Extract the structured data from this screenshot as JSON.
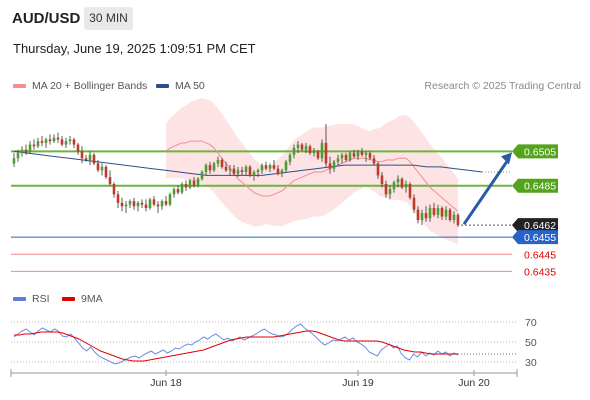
{
  "header": {
    "symbol": "AUD/USD",
    "timeframe": "30 MIN"
  },
  "datetime": "Thursday, June 19, 2025 1:09:51 PM CET",
  "legend": {
    "ma20": {
      "label": "MA 20 + Bollinger Bands",
      "color": "#ef8f8f"
    },
    "ma50": {
      "label": "MA 50",
      "color": "#2b4f8a"
    }
  },
  "credit": "Research © 2025 Trading Central",
  "rsi_legend": {
    "rsi": {
      "label": "RSI",
      "color": "#5b7fd6"
    },
    "ma9": {
      "label": "9MA",
      "color": "#e00000"
    }
  },
  "chart_data": {
    "type": "candlestick",
    "x_ticks": [
      {
        "label": "Jun 18",
        "index": 38
      },
      {
        "label": "Jun 19",
        "index": 86
      },
      {
        "label": "Jun 20",
        "index": 115
      }
    ],
    "price_ylim": [
      0.643,
      0.6535
    ],
    "candles": [
      [
        0.6498,
        0.6504,
        0.6496,
        0.6501
      ],
      [
        0.6501,
        0.6506,
        0.6499,
        0.6504
      ],
      [
        0.6504,
        0.6508,
        0.6502,
        0.6506
      ],
      [
        0.6506,
        0.6509,
        0.6503,
        0.6505
      ],
      [
        0.6505,
        0.6511,
        0.6504,
        0.6509
      ],
      [
        0.6509,
        0.6512,
        0.6506,
        0.6508
      ],
      [
        0.6508,
        0.6513,
        0.6507,
        0.6511
      ],
      [
        0.6511,
        0.6514,
        0.6508,
        0.651
      ],
      [
        0.651,
        0.6513,
        0.6507,
        0.6512
      ],
      [
        0.6512,
        0.6515,
        0.6509,
        0.6511
      ],
      [
        0.6511,
        0.6515,
        0.651,
        0.6513
      ],
      [
        0.6513,
        0.6516,
        0.651,
        0.6512
      ],
      [
        0.6512,
        0.6514,
        0.6508,
        0.6509
      ],
      [
        0.6509,
        0.6513,
        0.6507,
        0.6511
      ],
      [
        0.6511,
        0.6514,
        0.6509,
        0.6512
      ],
      [
        0.6512,
        0.6513,
        0.6507,
        0.6509
      ],
      [
        0.6509,
        0.651,
        0.6503,
        0.6505
      ],
      [
        0.6505,
        0.6508,
        0.6498,
        0.6501
      ],
      [
        0.6501,
        0.6503,
        0.6499,
        0.65
      ],
      [
        0.65,
        0.6505,
        0.6497,
        0.6503
      ],
      [
        0.6503,
        0.6504,
        0.6497,
        0.6498
      ],
      [
        0.6498,
        0.65,
        0.6493,
        0.6494
      ],
      [
        0.6494,
        0.6498,
        0.6491,
        0.6496
      ],
      [
        0.6496,
        0.6497,
        0.6489,
        0.649
      ],
      [
        0.649,
        0.6494,
        0.6485,
        0.6486
      ],
      [
        0.6486,
        0.6487,
        0.6478,
        0.648
      ],
      [
        0.648,
        0.6482,
        0.6472,
        0.6475
      ],
      [
        0.6475,
        0.6478,
        0.647,
        0.6473
      ],
      [
        0.6473,
        0.6476,
        0.6469,
        0.6474
      ],
      [
        0.6474,
        0.6477,
        0.6472,
        0.6476
      ],
      [
        0.6476,
        0.6478,
        0.6471,
        0.6473
      ],
      [
        0.6473,
        0.6476,
        0.647,
        0.6475
      ],
      [
        0.6475,
        0.6477,
        0.6472,
        0.6474
      ],
      [
        0.6474,
        0.6477,
        0.647,
        0.6472
      ],
      [
        0.6472,
        0.6478,
        0.6471,
        0.6477
      ],
      [
        0.6477,
        0.6479,
        0.6473,
        0.6474
      ],
      [
        0.6474,
        0.6476,
        0.6469,
        0.6473
      ],
      [
        0.6473,
        0.6477,
        0.6471,
        0.6476
      ],
      [
        0.6476,
        0.6479,
        0.6473,
        0.6474
      ],
      [
        0.6474,
        0.6481,
        0.6473,
        0.648
      ],
      [
        0.648,
        0.6484,
        0.6478,
        0.6483
      ],
      [
        0.6483,
        0.6485,
        0.648,
        0.6481
      ],
      [
        0.6481,
        0.6487,
        0.648,
        0.6486
      ],
      [
        0.6486,
        0.6488,
        0.6482,
        0.6484
      ],
      [
        0.6484,
        0.6489,
        0.6483,
        0.6488
      ],
      [
        0.6488,
        0.649,
        0.6484,
        0.6485
      ],
      [
        0.6485,
        0.649,
        0.6484,
        0.6489
      ],
      [
        0.6489,
        0.6494,
        0.6488,
        0.6493
      ],
      [
        0.6493,
        0.6498,
        0.6491,
        0.6497
      ],
      [
        0.6497,
        0.6499,
        0.6492,
        0.6494
      ],
      [
        0.6494,
        0.6499,
        0.6493,
        0.6498
      ],
      [
        0.6498,
        0.6502,
        0.6496,
        0.65
      ],
      [
        0.65,
        0.6501,
        0.6495,
        0.6496
      ],
      [
        0.6496,
        0.6499,
        0.6493,
        0.6494
      ],
      [
        0.6494,
        0.6497,
        0.6491,
        0.6495
      ],
      [
        0.6495,
        0.6497,
        0.6491,
        0.6492
      ],
      [
        0.6492,
        0.6496,
        0.649,
        0.6494
      ],
      [
        0.6494,
        0.6496,
        0.6491,
        0.6493
      ],
      [
        0.6493,
        0.6497,
        0.6491,
        0.6496
      ],
      [
        0.6496,
        0.6497,
        0.649,
        0.6491
      ],
      [
        0.6491,
        0.6494,
        0.6488,
        0.6493
      ],
      [
        0.6493,
        0.6495,
        0.649,
        0.6494
      ],
      [
        0.6494,
        0.6498,
        0.6492,
        0.6497
      ],
      [
        0.6497,
        0.6499,
        0.6494,
        0.6495
      ],
      [
        0.6495,
        0.6498,
        0.6493,
        0.6497
      ],
      [
        0.6497,
        0.65,
        0.6494,
        0.6495
      ],
      [
        0.6495,
        0.6497,
        0.6491,
        0.6492
      ],
      [
        0.6492,
        0.6495,
        0.649,
        0.6494
      ],
      [
        0.6494,
        0.65,
        0.6493,
        0.6499
      ],
      [
        0.6499,
        0.6504,
        0.6497,
        0.6503
      ],
      [
        0.6503,
        0.6509,
        0.6501,
        0.6507
      ],
      [
        0.6507,
        0.6511,
        0.6504,
        0.6509
      ],
      [
        0.6509,
        0.651,
        0.6505,
        0.6506
      ],
      [
        0.6506,
        0.651,
        0.6504,
        0.6508
      ],
      [
        0.6508,
        0.6509,
        0.6503,
        0.6504
      ],
      [
        0.6504,
        0.6507,
        0.6502,
        0.6505
      ],
      [
        0.6505,
        0.6506,
        0.65,
        0.6501
      ],
      [
        0.6501,
        0.6512,
        0.6499,
        0.651
      ],
      [
        0.651,
        0.6521,
        0.6496,
        0.6498
      ],
      [
        0.6498,
        0.6502,
        0.6492,
        0.6495
      ],
      [
        0.6495,
        0.65,
        0.6493,
        0.6499
      ],
      [
        0.6499,
        0.6503,
        0.6497,
        0.6501
      ],
      [
        0.6501,
        0.6504,
        0.6498,
        0.6503
      ],
      [
        0.6503,
        0.6504,
        0.6499,
        0.65
      ],
      [
        0.65,
        0.6505,
        0.6499,
        0.6504
      ],
      [
        0.6504,
        0.6506,
        0.6501,
        0.6502
      ],
      [
        0.6502,
        0.6506,
        0.65,
        0.6505
      ],
      [
        0.6505,
        0.6507,
        0.6502,
        0.6503
      ],
      [
        0.6503,
        0.6505,
        0.6499,
        0.6504
      ],
      [
        0.6504,
        0.6505,
        0.65,
        0.6501
      ],
      [
        0.6501,
        0.6503,
        0.6497,
        0.6498
      ],
      [
        0.6498,
        0.6499,
        0.6489,
        0.6491
      ],
      [
        0.6491,
        0.6493,
        0.6484,
        0.6486
      ],
      [
        0.6486,
        0.6488,
        0.6478,
        0.648
      ],
      [
        0.648,
        0.6485,
        0.6477,
        0.6483
      ],
      [
        0.6483,
        0.6488,
        0.6481,
        0.6487
      ],
      [
        0.6487,
        0.6491,
        0.6484,
        0.6489
      ],
      [
        0.6489,
        0.649,
        0.6483,
        0.6484
      ],
      [
        0.6484,
        0.6488,
        0.6481,
        0.6486
      ],
      [
        0.6486,
        0.6487,
        0.6477,
        0.6478
      ],
      [
        0.6478,
        0.648,
        0.6469,
        0.6471
      ],
      [
        0.6471,
        0.6473,
        0.6463,
        0.6465
      ],
      [
        0.6465,
        0.6471,
        0.6462,
        0.6469
      ],
      [
        0.6469,
        0.6473,
        0.6464,
        0.6466
      ],
      [
        0.6466,
        0.6474,
        0.6464,
        0.6472
      ],
      [
        0.6472,
        0.6475,
        0.6467,
        0.6468
      ],
      [
        0.6468,
        0.6474,
        0.6466,
        0.6472
      ],
      [
        0.6472,
        0.6473,
        0.6465,
        0.6467
      ],
      [
        0.6467,
        0.6473,
        0.6465,
        0.6471
      ],
      [
        0.6471,
        0.6472,
        0.6464,
        0.6465
      ],
      [
        0.6465,
        0.647,
        0.6463,
        0.6468
      ],
      [
        0.6468,
        0.6469,
        0.6461,
        0.6462
      ]
    ],
    "ma20": [
      0.6505,
      0.6507,
      0.6508,
      0.6509,
      0.651,
      0.651,
      0.6511,
      0.6511,
      0.6511,
      0.6511,
      0.651,
      0.6509,
      0.6507,
      0.6504,
      0.6501,
      0.6498,
      0.6495,
      0.6492,
      0.6489,
      0.6487,
      0.6485,
      0.6483,
      0.6481,
      0.648,
      0.6479,
      0.6479,
      0.6479,
      0.648,
      0.6481,
      0.6482,
      0.6484,
      0.6486,
      0.6488,
      0.6489,
      0.649,
      0.6491,
      0.6492,
      0.6493,
      0.6493,
      0.6493,
      0.6494,
      0.6495,
      0.6496,
      0.6497,
      0.6498,
      0.6499,
      0.65,
      0.6501,
      0.6501,
      0.6501,
      0.6501,
      0.65,
      0.65,
      0.6499,
      0.6499,
      0.65,
      0.65,
      0.65,
      0.6501,
      0.6501,
      0.6501,
      0.6499,
      0.6496,
      0.6493,
      0.649,
      0.6487,
      0.6484,
      0.6482,
      0.648,
      0.6478,
      0.6476,
      0.6474,
      0.6472,
      0.647
    ],
    "ma50": [
      0.6505,
      0.6504,
      0.6503,
      0.6502,
      0.6501,
      0.65,
      0.6499,
      0.6498,
      0.6497,
      0.6496,
      0.6495,
      0.6494,
      0.6493,
      0.6492,
      0.6491,
      0.6491,
      0.6491,
      0.6491,
      0.6491,
      0.6492,
      0.6493,
      0.6494,
      0.6495,
      0.6496,
      0.6497,
      0.6497,
      0.6497,
      0.6497,
      0.6497,
      0.6497,
      0.6496,
      0.6496,
      0.6495,
      0.6494,
      0.6493
    ],
    "levels": [
      {
        "label": "0.6505",
        "value": 0.6505,
        "style": "green"
      },
      {
        "label": "0.6485",
        "value": 0.6485,
        "style": "green"
      },
      {
        "label": "0.6462",
        "value": 0.6462,
        "style": "current"
      },
      {
        "label": "0.6455",
        "value": 0.6455,
        "style": "blue"
      },
      {
        "label": "0.6445",
        "value": 0.6445,
        "style": "red"
      },
      {
        "label": "0.6435",
        "value": 0.6435,
        "style": "red"
      }
    ],
    "rsi_ylim": [
      20,
      80
    ],
    "rsi_ticks": [
      "70",
      "50",
      "30"
    ],
    "rsi": [
      55,
      58,
      61,
      63,
      60,
      57,
      61,
      64,
      62,
      60,
      63,
      61,
      56,
      55,
      58,
      54,
      49,
      44,
      41,
      45,
      40,
      36,
      34,
      32,
      30,
      28,
      29,
      31,
      33,
      35,
      36,
      34,
      37,
      39,
      41,
      38,
      40,
      42,
      39,
      41,
      44,
      43,
      46,
      48,
      47,
      50,
      52,
      55,
      53,
      56,
      58,
      55,
      52,
      54,
      51,
      53,
      55,
      52,
      54,
      56,
      58,
      61,
      63,
      60,
      58,
      57,
      55,
      56,
      59,
      63,
      66,
      68,
      64,
      61,
      58,
      54,
      50,
      47,
      49,
      52,
      51,
      53,
      55,
      52,
      54,
      50,
      48,
      45,
      40,
      38,
      36,
      42,
      45,
      48,
      44,
      46,
      38,
      34,
      32,
      38,
      35,
      40,
      36,
      39,
      37,
      41,
      38,
      40,
      36,
      39,
      37
    ],
    "rsi_ma": [
      57,
      57,
      58,
      58,
      59,
      60,
      60,
      60,
      60,
      59,
      57,
      55,
      53,
      50,
      47,
      44,
      41,
      39,
      37,
      35,
      33,
      32,
      31,
      31,
      31,
      32,
      33,
      34,
      35,
      36,
      37,
      38,
      39,
      40,
      41,
      42,
      44,
      46,
      48,
      50,
      52,
      53,
      54,
      55,
      55,
      55,
      55,
      55,
      55,
      56,
      57,
      58,
      59,
      60,
      61,
      61,
      60,
      58,
      56,
      54,
      52,
      51,
      51,
      51,
      51,
      51,
      51,
      51,
      50,
      48,
      46,
      44,
      42,
      41,
      40,
      40,
      39,
      38,
      38,
      38,
      38,
      38,
      38
    ]
  }
}
